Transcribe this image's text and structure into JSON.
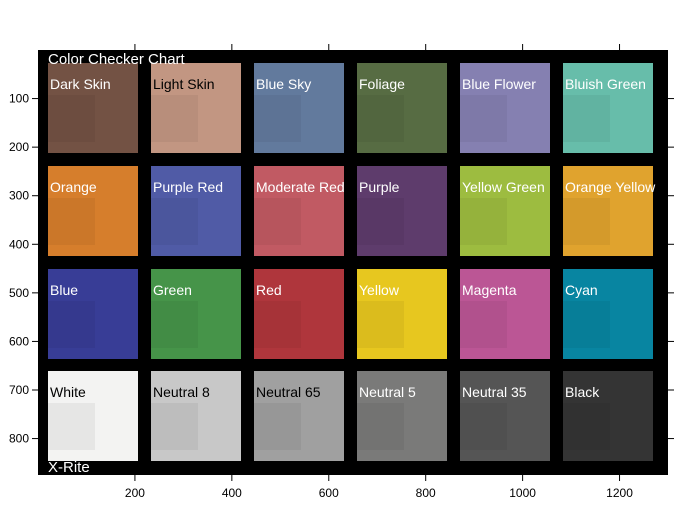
{
  "chart_data": {
    "type": "image",
    "title": "Color Checker Chart",
    "footer": "X-Rite",
    "xlim": [
      0,
      1300
    ],
    "ylim": [
      0,
      875
    ],
    "x_ticks": [
      200,
      400,
      600,
      800,
      1000,
      1200
    ],
    "y_ticks": [
      100,
      200,
      300,
      400,
      500,
      600,
      700,
      800
    ],
    "grid": false,
    "patches": [
      {
        "name": "Dark Skin",
        "color": "#735244",
        "label_color": "#ffffff",
        "row": 0,
        "col": 0
      },
      {
        "name": "Light Skin",
        "color": "#c29682",
        "label_color": "#000000",
        "row": 0,
        "col": 1
      },
      {
        "name": "Blue Sky",
        "color": "#627a9d",
        "label_color": "#ffffff",
        "row": 0,
        "col": 2
      },
      {
        "name": "Foliage",
        "color": "#576c43",
        "label_color": "#ffffff",
        "row": 0,
        "col": 3
      },
      {
        "name": "Blue Flower",
        "color": "#8580b1",
        "label_color": "#ffffff",
        "row": 0,
        "col": 4
      },
      {
        "name": "Bluish Green",
        "color": "#67bdaa",
        "label_color": "#ffffff",
        "row": 0,
        "col": 5
      },
      {
        "name": "Orange",
        "color": "#d67e2c",
        "label_color": "#ffffff",
        "row": 1,
        "col": 0
      },
      {
        "name": "Purple Red",
        "color": "#505ba6",
        "label_color": "#ffffff",
        "row": 1,
        "col": 1
      },
      {
        "name": "Moderate Red",
        "color": "#c15a63",
        "label_color": "#ffffff",
        "row": 1,
        "col": 2
      },
      {
        "name": "Purple",
        "color": "#5e3c6c",
        "label_color": "#ffffff",
        "row": 1,
        "col": 3
      },
      {
        "name": "Yellow Green",
        "color": "#9dbc40",
        "label_color": "#ffffff",
        "row": 1,
        "col": 4
      },
      {
        "name": "Orange Yellow",
        "color": "#e0a32e",
        "label_color": "#ffffff",
        "row": 1,
        "col": 5
      },
      {
        "name": "Blue",
        "color": "#383d96",
        "label_color": "#ffffff",
        "row": 2,
        "col": 0
      },
      {
        "name": "Green",
        "color": "#469449",
        "label_color": "#ffffff",
        "row": 2,
        "col": 1
      },
      {
        "name": "Red",
        "color": "#af363c",
        "label_color": "#ffffff",
        "row": 2,
        "col": 2
      },
      {
        "name": "Yellow",
        "color": "#e7c71f",
        "label_color": "#ffffff",
        "row": 2,
        "col": 3
      },
      {
        "name": "Magenta",
        "color": "#bb5695",
        "label_color": "#ffffff",
        "row": 2,
        "col": 4
      },
      {
        "name": "Cyan",
        "color": "#0885a1",
        "label_color": "#ffffff",
        "row": 2,
        "col": 5
      },
      {
        "name": "White",
        "color": "#f3f3f2",
        "label_color": "#000000",
        "row": 3,
        "col": 0
      },
      {
        "name": "Neutral 8",
        "color": "#c8c8c8",
        "label_color": "#000000",
        "row": 3,
        "col": 1
      },
      {
        "name": "Neutral 65",
        "color": "#a0a0a0",
        "label_color": "#000000",
        "row": 3,
        "col": 2
      },
      {
        "name": "Neutral 5",
        "color": "#7a7a79",
        "label_color": "#ffffff",
        "row": 3,
        "col": 3
      },
      {
        "name": "Neutral 35",
        "color": "#555555",
        "label_color": "#ffffff",
        "row": 3,
        "col": 4
      },
      {
        "name": "Black",
        "color": "#343434",
        "label_color": "#ffffff",
        "row": 3,
        "col": 5
      }
    ],
    "background_color": "#000000"
  }
}
